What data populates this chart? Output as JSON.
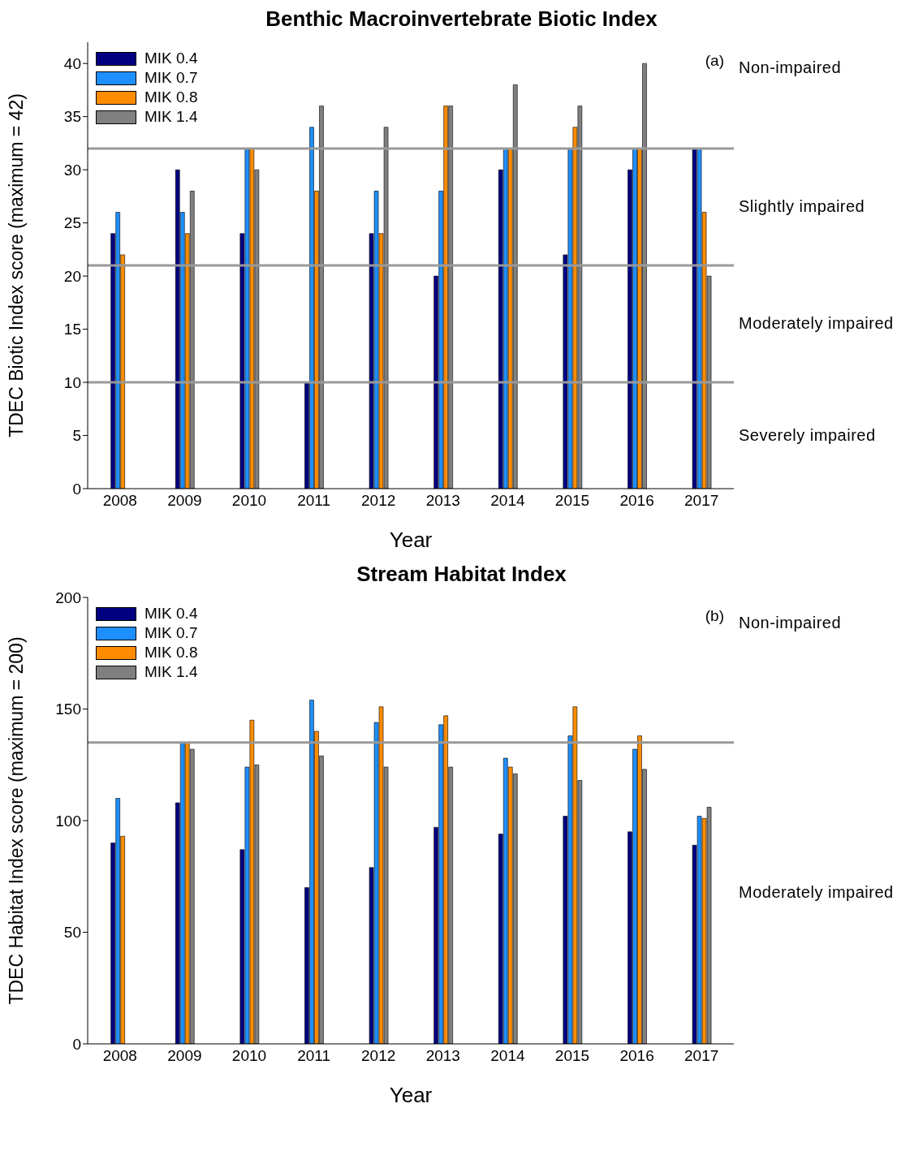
{
  "chart_data": [
    {
      "type": "bar",
      "title": "Benthic Macroinvertebrate Biotic Index",
      "xlabel": "Year",
      "ylabel": "TDEC Biotic Index score (maximum = 42)",
      "categories": [
        "2008",
        "2009",
        "2010",
        "2011",
        "2012",
        "2013",
        "2014",
        "2015",
        "2016",
        "2017"
      ],
      "series": [
        {
          "name": "MIK 0.4",
          "color": "#000080",
          "values": [
            24,
            30,
            24,
            10,
            24,
            20,
            30,
            22,
            30,
            32
          ]
        },
        {
          "name": "MIK 0.7",
          "color": "#1e8fff",
          "values": [
            26,
            26,
            32,
            34,
            28,
            28,
            32,
            32,
            32,
            32
          ]
        },
        {
          "name": "MIK 0.8",
          "color": "#ff8c00",
          "values": [
            22,
            24,
            32,
            28,
            24,
            36,
            32,
            34,
            32,
            26
          ]
        },
        {
          "name": "MIK 1.4",
          "color": "#808080",
          "values": [
            null,
            28,
            30,
            36,
            34,
            36,
            38,
            36,
            40,
            20
          ]
        }
      ],
      "ylim": [
        0,
        42
      ],
      "yticks": [
        0,
        5,
        10,
        15,
        20,
        25,
        30,
        35,
        40
      ],
      "grid": false,
      "legend": "top left",
      "ref_lines": [
        {
          "axis": "y",
          "value": 32,
          "color": "#999999"
        },
        {
          "axis": "y",
          "value": 21,
          "color": "#999999"
        },
        {
          "axis": "y",
          "value": 10,
          "color": "#999999"
        }
      ],
      "annotations": [
        "(a)",
        "Non-impaired",
        "Slightly impaired",
        "Moderately impaired",
        "Severely impaired"
      ]
    },
    {
      "type": "bar",
      "title": "Stream Habitat Index",
      "xlabel": "Year",
      "ylabel": "TDEC Habitat Index score (maximum = 200)",
      "categories": [
        "2008",
        "2009",
        "2010",
        "2011",
        "2012",
        "2013",
        "2014",
        "2015",
        "2016",
        "2017"
      ],
      "series": [
        {
          "name": "MIK 0.4",
          "color": "#000080",
          "values": [
            90,
            108,
            87,
            70,
            79,
            97,
            94,
            102,
            95,
            89
          ]
        },
        {
          "name": "MIK 0.7",
          "color": "#1e8fff",
          "values": [
            110,
            135,
            124,
            154,
            144,
            143,
            128,
            138,
            132,
            102
          ]
        },
        {
          "name": "MIK 0.8",
          "color": "#ff8c00",
          "values": [
            93,
            135,
            145,
            140,
            151,
            147,
            124,
            151,
            138,
            101
          ]
        },
        {
          "name": "MIK 1.4",
          "color": "#808080",
          "values": [
            null,
            132,
            125,
            129,
            124,
            124,
            121,
            118,
            123,
            106
          ]
        }
      ],
      "ylim": [
        0,
        200
      ],
      "yticks": [
        0,
        50,
        100,
        150,
        200
      ],
      "grid": false,
      "legend": "top left",
      "ref_lines": [
        {
          "axis": "y",
          "value": 135,
          "color": "#999999"
        }
      ],
      "annotations": [
        "(b)",
        "Non-impaired",
        "Moderately impaired"
      ]
    }
  ]
}
